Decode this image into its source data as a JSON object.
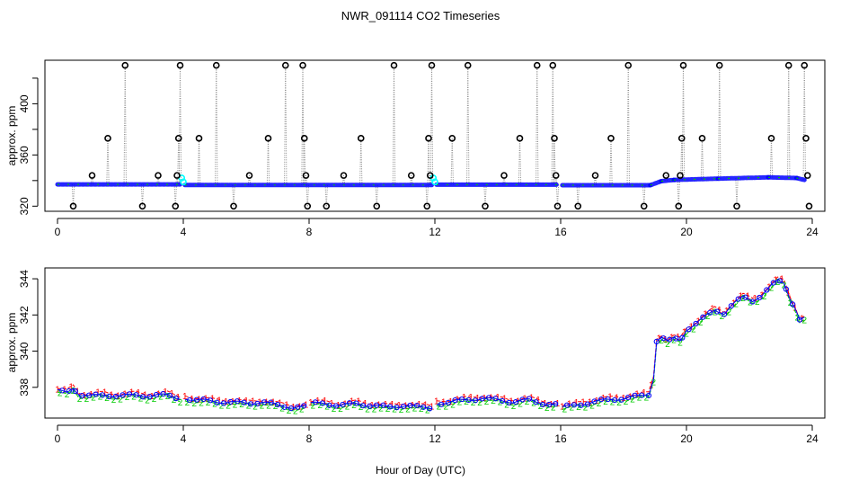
{
  "figure": {
    "title": "NWR_091114  CO2 Timeseries",
    "xlabel": "Hour of Day (UTC)"
  },
  "chart_data": [
    {
      "type": "scatter",
      "name": "top",
      "ylabel": "approx. ppm",
      "xlim": [
        -0.4,
        24.4
      ],
      "ylim": [
        316,
        434
      ],
      "x_ticks": [
        0,
        4,
        8,
        12,
        16,
        20,
        24
      ],
      "x_tick_labels": [
        "0",
        "4",
        "8",
        "12",
        "16",
        "20",
        "24"
      ],
      "y_ticks": [
        320,
        360,
        400
      ],
      "y_tick_labels": [
        "320",
        "360",
        "400"
      ],
      "y_minor_ticks": [
        340,
        380,
        420
      ],
      "colors": {
        "main": "#0000ff",
        "alt": "#00cc00",
        "flag": "#000000",
        "cyan": "#00ffff",
        "link": "#888888"
      },
      "baseline_segments": [
        {
          "x0": 0.0,
          "x1": 3.9,
          "y0": 337.0,
          "y1": 337.0
        },
        {
          "x0": 4.05,
          "x1": 11.9,
          "y0": 336.5,
          "y1": 336.5
        },
        {
          "x0": 12.05,
          "x1": 15.9,
          "y0": 336.8,
          "y1": 336.8
        },
        {
          "x0": 16.05,
          "x1": 18.85,
          "y0": 336.4,
          "y1": 336.4
        },
        {
          "x0": 18.85,
          "x1": 19.2,
          "y0": 336.4,
          "y1": 339.5
        },
        {
          "x0": 19.2,
          "x1": 19.6,
          "y0": 339.5,
          "y1": 340.5
        },
        {
          "x0": 19.6,
          "x1": 21.0,
          "y0": 340.5,
          "y1": 341.5
        },
        {
          "x0": 21.0,
          "x1": 22.6,
          "y0": 341.5,
          "y1": 342.5
        },
        {
          "x0": 22.6,
          "x1": 23.5,
          "y0": 342.5,
          "y1": 342.0
        },
        {
          "x0": 23.5,
          "x1": 23.75,
          "y0": 342.0,
          "y1": 340.5
        }
      ],
      "outliers": [
        {
          "x": 0.5,
          "y": 320
        },
        {
          "x": 1.1,
          "y": 344
        },
        {
          "x": 1.6,
          "y": 373
        },
        {
          "x": 2.15,
          "y": 430
        },
        {
          "x": 2.7,
          "y": 320
        },
        {
          "x": 3.2,
          "y": 344
        },
        {
          "x": 3.75,
          "y": 320
        },
        {
          "x": 3.8,
          "y": 344
        },
        {
          "x": 3.85,
          "y": 373
        },
        {
          "x": 3.9,
          "y": 430
        },
        {
          "x": 4.5,
          "y": 373
        },
        {
          "x": 5.05,
          "y": 430
        },
        {
          "x": 5.6,
          "y": 320
        },
        {
          "x": 6.1,
          "y": 344
        },
        {
          "x": 6.7,
          "y": 373
        },
        {
          "x": 7.25,
          "y": 430
        },
        {
          "x": 7.8,
          "y": 430
        },
        {
          "x": 7.85,
          "y": 373
        },
        {
          "x": 7.9,
          "y": 344
        },
        {
          "x": 7.95,
          "y": 320
        },
        {
          "x": 8.55,
          "y": 320
        },
        {
          "x": 9.1,
          "y": 344
        },
        {
          "x": 9.65,
          "y": 373
        },
        {
          "x": 10.15,
          "y": 320
        },
        {
          "x": 10.7,
          "y": 430
        },
        {
          "x": 11.25,
          "y": 344
        },
        {
          "x": 11.75,
          "y": 320
        },
        {
          "x": 11.8,
          "y": 373
        },
        {
          "x": 11.85,
          "y": 344
        },
        {
          "x": 11.9,
          "y": 430
        },
        {
          "x": 12.55,
          "y": 373
        },
        {
          "x": 13.05,
          "y": 430
        },
        {
          "x": 13.6,
          "y": 320
        },
        {
          "x": 14.2,
          "y": 344
        },
        {
          "x": 14.7,
          "y": 373
        },
        {
          "x": 15.25,
          "y": 430
        },
        {
          "x": 15.75,
          "y": 430
        },
        {
          "x": 15.8,
          "y": 373
        },
        {
          "x": 15.85,
          "y": 344
        },
        {
          "x": 15.9,
          "y": 320
        },
        {
          "x": 16.55,
          "y": 320
        },
        {
          "x": 17.1,
          "y": 344
        },
        {
          "x": 17.6,
          "y": 373
        },
        {
          "x": 18.15,
          "y": 430
        },
        {
          "x": 18.65,
          "y": 320
        },
        {
          "x": 19.35,
          "y": 344
        },
        {
          "x": 19.75,
          "y": 320
        },
        {
          "x": 19.8,
          "y": 344
        },
        {
          "x": 19.85,
          "y": 373
        },
        {
          "x": 19.9,
          "y": 430
        },
        {
          "x": 20.5,
          "y": 373
        },
        {
          "x": 21.05,
          "y": 430
        },
        {
          "x": 21.6,
          "y": 320
        },
        {
          "x": 22.7,
          "y": 373
        },
        {
          "x": 23.25,
          "y": 430
        },
        {
          "x": 23.75,
          "y": 430
        },
        {
          "x": 23.8,
          "y": 373
        },
        {
          "x": 23.85,
          "y": 344
        },
        {
          "x": 23.9,
          "y": 320
        }
      ],
      "cyan_points": [
        {
          "x": 3.95,
          "y": 342
        },
        {
          "x": 4.0,
          "y": 339
        },
        {
          "x": 11.95,
          "y": 342
        },
        {
          "x": 12.0,
          "y": 339
        }
      ]
    },
    {
      "type": "line",
      "name": "bottom",
      "ylabel": "approx. ppm",
      "xlim": [
        -0.4,
        24.4
      ],
      "ylim": [
        336.3,
        344.6
      ],
      "x_ticks": [
        0,
        4,
        8,
        12,
        16,
        20,
        24
      ],
      "x_tick_labels": [
        "0",
        "4",
        "8",
        "12",
        "16",
        "20",
        "24"
      ],
      "y_ticks": [
        338,
        340,
        342,
        344
      ],
      "y_tick_labels": [
        "338",
        "340",
        "342",
        "344"
      ],
      "series": [
        {
          "name": "1",
          "color": "#ff0000",
          "offset": 0.12
        },
        {
          "name": "2",
          "color": "#00cc00",
          "offset": -0.12
        },
        {
          "name": "3",
          "color": "#0000ff",
          "offset": 0.0
        }
      ],
      "segments": [
        {
          "x": [
            0.0,
            0.3,
            0.5,
            0.7,
            1.0,
            1.5,
            2.0,
            2.5,
            3.0,
            3.5,
            3.9
          ],
          "y": [
            337.8,
            337.7,
            338.0,
            337.6,
            337.5,
            337.6,
            337.5,
            337.6,
            337.5,
            337.6,
            337.4
          ]
        },
        {
          "x": [
            4.05,
            4.5,
            5.0,
            5.5,
            6.0,
            6.5,
            7.0,
            7.5,
            7.9
          ],
          "y": [
            337.4,
            337.3,
            337.2,
            337.2,
            337.1,
            337.2,
            337.0,
            336.9,
            336.9
          ]
        },
        {
          "x": [
            8.05,
            8.5,
            9.0,
            9.5,
            10.0,
            10.5,
            11.0,
            11.5,
            11.9
          ],
          "y": [
            337.1,
            337.1,
            337.0,
            337.1,
            337.0,
            336.9,
            337.0,
            336.9,
            336.9
          ]
        },
        {
          "x": [
            12.05,
            12.5,
            13.0,
            13.5,
            14.0,
            14.5,
            15.0,
            15.5,
            15.9
          ],
          "y": [
            337.1,
            337.2,
            337.3,
            337.4,
            337.3,
            337.2,
            337.3,
            337.1,
            337.0
          ]
        },
        {
          "x": [
            16.05,
            16.5,
            17.0,
            17.5,
            18.0,
            18.5,
            18.8,
            18.95,
            19.05,
            19.2,
            19.4,
            19.6,
            19.8,
            20.0,
            20.3,
            20.6,
            20.9,
            21.2,
            21.5,
            21.8,
            22.1,
            22.4,
            22.7,
            22.9,
            23.1,
            23.3,
            23.45,
            23.6,
            23.75
          ],
          "y": [
            336.9,
            337.0,
            337.2,
            337.3,
            337.4,
            337.5,
            337.6,
            338.5,
            340.6,
            340.8,
            340.5,
            340.7,
            340.6,
            341.2,
            341.5,
            341.9,
            342.3,
            342.1,
            342.6,
            343.0,
            342.8,
            343.1,
            343.6,
            343.9,
            343.8,
            342.9,
            342.4,
            341.7,
            341.8
          ]
        }
      ]
    }
  ]
}
